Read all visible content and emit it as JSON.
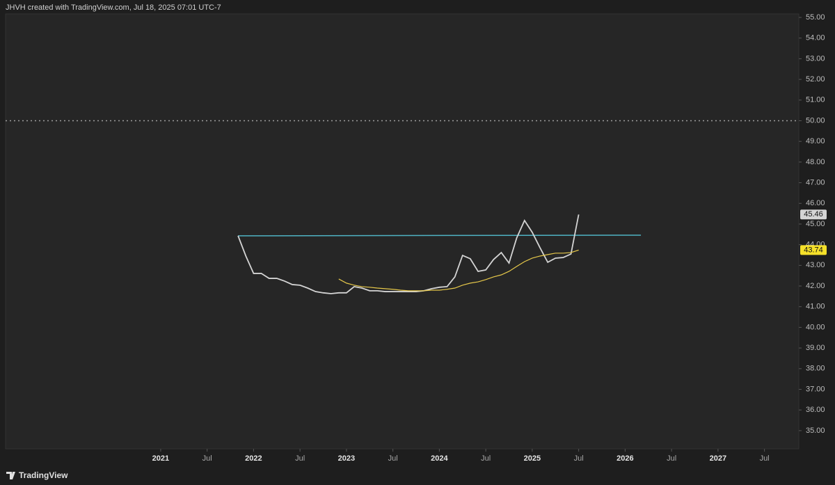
{
  "chart_data": {
    "type": "line",
    "title": "JHVH created with TradingView.com, Jul 18, 2025 07:01 UTC-7",
    "footer": "TradingView",
    "x": [
      2021.833,
      2021.917,
      2022,
      2022.083,
      2022.167,
      2022.25,
      2022.333,
      2022.417,
      2022.5,
      2022.583,
      2022.667,
      2022.75,
      2022.833,
      2022.917,
      2023,
      2023.083,
      2023.167,
      2023.25,
      2023.333,
      2023.417,
      2023.5,
      2023.583,
      2023.667,
      2023.75,
      2023.833,
      2023.917,
      2024,
      2024.083,
      2024.167,
      2024.25,
      2024.333,
      2024.417,
      2024.5,
      2024.583,
      2024.667,
      2024.75,
      2024.833,
      2024.917,
      2025,
      2025.083,
      2025.167,
      2025.25,
      2025.333,
      2025.417,
      2025.5
    ],
    "series": [
      {
        "color": "#d4d4d4",
        "label_bg": "#d4d4d4",
        "values": [
          44.43,
          43.45,
          42.61,
          42.61,
          42.37,
          42.37,
          42.24,
          42.07,
          42.04,
          41.9,
          41.73,
          41.67,
          41.63,
          41.67,
          41.67,
          41.97,
          41.9,
          41.77,
          41.77,
          41.73,
          41.73,
          41.73,
          41.73,
          41.73,
          41.77,
          41.87,
          41.94,
          41.97,
          42.44,
          43.48,
          43.32,
          42.71,
          42.78,
          43.28,
          43.62,
          43.11,
          44.33,
          45.17,
          44.6,
          43.86,
          43.15,
          43.35,
          43.38,
          43.55,
          45.46
        ]
      },
      {
        "color": "#e6c84a",
        "label_bg": "#f5e02a",
        "values": [
          null,
          null,
          null,
          null,
          null,
          null,
          null,
          null,
          null,
          null,
          null,
          null,
          null,
          42.34,
          42.14,
          42.04,
          41.97,
          41.94,
          41.9,
          41.87,
          41.84,
          41.8,
          41.77,
          41.77,
          41.77,
          41.8,
          41.8,
          41.84,
          41.9,
          42.04,
          42.14,
          42.2,
          42.31,
          42.44,
          42.54,
          42.71,
          42.95,
          43.18,
          43.35,
          43.45,
          43.52,
          43.59,
          43.59,
          43.62,
          43.74
        ]
      }
    ],
    "trendline": {
      "x": [
        2021.833,
        2026.17
      ],
      "y": [
        44.43,
        44.46
      ],
      "color": "#4fb3c4"
    },
    "hline": 50,
    "xlim": [
      2019.33,
      2027.87
    ],
    "xticks": [
      2021,
      {
        "value": 2021.5,
        "label": "Jul"
      },
      2022,
      {
        "value": 2022.5,
        "label": "Jul"
      },
      2023,
      {
        "value": 2023.5,
        "label": "Jul"
      },
      2024,
      {
        "value": 2024.5,
        "label": "Jul"
      },
      2025,
      {
        "value": 2025.5,
        "label": "Jul"
      },
      2026,
      {
        "value": 2026.5,
        "label": "Jul"
      },
      2027,
      {
        "value": 2027.5,
        "label": "Jul"
      }
    ],
    "ylim": [
      34.12,
      55.17
    ],
    "yticks": [
      {
        "value": 35,
        "label": "35.00"
      },
      {
        "value": 36,
        "label": "36.00"
      },
      {
        "value": 37,
        "label": "37.00"
      },
      {
        "value": 38,
        "label": "38.00"
      },
      {
        "value": 39,
        "label": "39.00"
      },
      {
        "value": 40,
        "label": "40.00"
      },
      {
        "value": 41,
        "label": "41.00"
      },
      {
        "value": 42,
        "label": "42.00"
      },
      {
        "value": 43,
        "label": "43.00"
      },
      {
        "value": 44,
        "label": "44.00"
      },
      {
        "value": 45,
        "label": "45.00"
      },
      {
        "value": 46,
        "label": "46.00"
      },
      {
        "value": 47,
        "label": "47.00"
      },
      {
        "value": 48,
        "label": "48.00"
      },
      {
        "value": 49,
        "label": "49.00"
      },
      {
        "value": 50,
        "label": "50.00"
      },
      {
        "value": 51,
        "label": "51.00"
      },
      {
        "value": 52,
        "label": "52.00"
      },
      {
        "value": 53,
        "label": "53.00"
      },
      {
        "value": 54,
        "label": "54.00"
      },
      {
        "value": 55,
        "label": "55.00"
      }
    ]
  }
}
